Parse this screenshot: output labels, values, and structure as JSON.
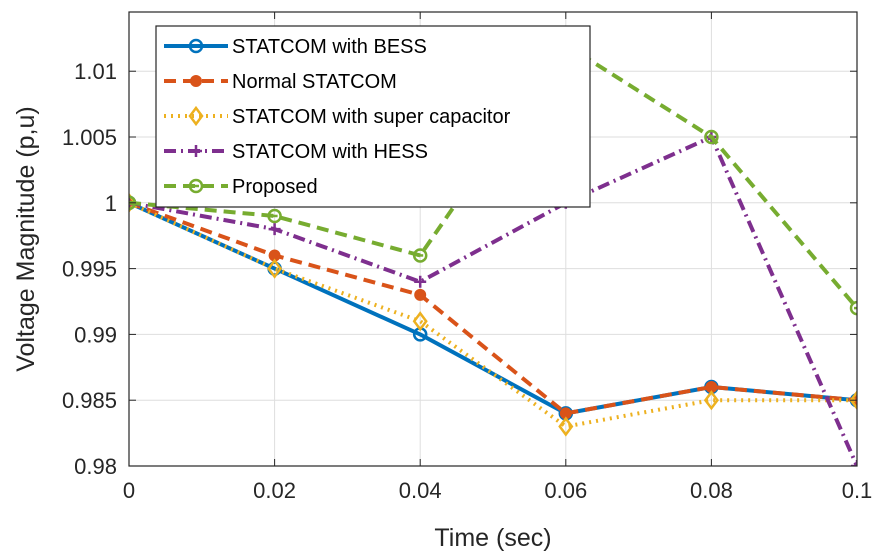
{
  "chart_data": {
    "type": "line",
    "title": "",
    "xlabel": "Time (sec)",
    "ylabel": "Voltage Magnitude (p,u)",
    "x": [
      0,
      0.02,
      0.04,
      0.06,
      0.08,
      0.1
    ],
    "xlim": [
      0,
      0.1
    ],
    "ylim": [
      0.98,
      1.0145
    ],
    "x_ticks": [
      "0",
      "0.02",
      "0.04",
      "0.06",
      "0.08",
      "0.1"
    ],
    "y_ticks": [
      "0.98",
      "0.985",
      "0.99",
      "0.995",
      "1",
      "1.005",
      "1.01"
    ],
    "grid": true,
    "legend_position": "top-left",
    "series": [
      {
        "name": "STATCOM with BESS",
        "values": [
          1.0,
          0.995,
          0.99,
          0.984,
          0.986,
          0.985
        ],
        "color": "#0072BD",
        "line_style": "solid",
        "marker": "circle"
      },
      {
        "name": "Normal STATCOM",
        "values": [
          1.0,
          0.996,
          0.993,
          0.984,
          0.986,
          0.985
        ],
        "color": "#D95319",
        "line_style": "dashed",
        "marker": "dot"
      },
      {
        "name": "STATCOM with super capacitor",
        "values": [
          1.0,
          0.995,
          0.991,
          0.983,
          0.985,
          0.985
        ],
        "color": "#EDB120",
        "line_style": "dotted",
        "marker": "diamond"
      },
      {
        "name": "STATCOM with HESS",
        "values": [
          1.0,
          0.998,
          0.994,
          1.0,
          1.005,
          0.98
        ],
        "color": "#7E2F8E",
        "line_style": "dashdot",
        "marker": "plus"
      },
      {
        "name": "Proposed",
        "values": [
          1.0,
          0.999,
          0.996,
          1.012,
          1.005,
          0.992
        ],
        "color": "#77AC30",
        "line_style": "dashed",
        "marker": "circle-dot"
      }
    ]
  }
}
